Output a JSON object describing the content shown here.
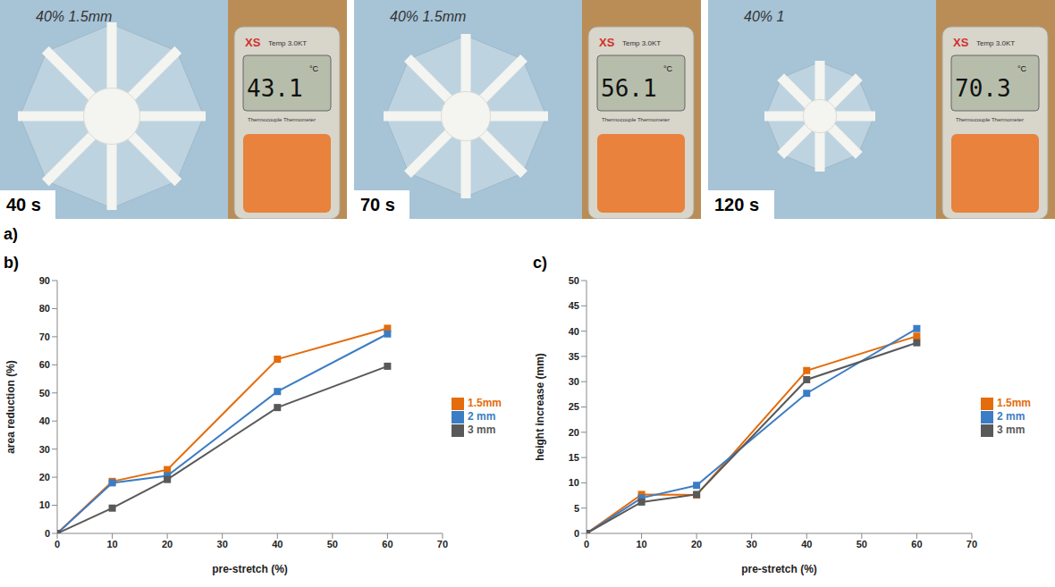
{
  "photos": {
    "label": "a)",
    "device": {
      "brand": "XS",
      "model": "Temp 3.0KT",
      "name": "Thermocouple Thermometer"
    },
    "frames": [
      {
        "time": "40 s",
        "reading": "43.1",
        "unit": "°C",
        "note": "40% 1.5mm"
      },
      {
        "time": "70 s",
        "reading": "56.1",
        "unit": "°C",
        "note": "40% 1.5mm"
      },
      {
        "time": "120 s",
        "reading": "70.3",
        "unit": "°C",
        "note": "40% 1"
      }
    ]
  },
  "chart_data": [
    {
      "label": "b)",
      "type": "line",
      "x_label": "pre-stretch (%)",
      "y_label": "area reduction (%)",
      "x": [
        0,
        10,
        20,
        40,
        60
      ],
      "xlim": [
        0,
        70
      ],
      "xticks": [
        0,
        10,
        20,
        30,
        40,
        50,
        60,
        70
      ],
      "ylim": [
        0,
        90
      ],
      "yticks": [
        0,
        10,
        20,
        30,
        40,
        50,
        60,
        70,
        80,
        90
      ],
      "grid": false,
      "legend": "right",
      "marker": "square",
      "series": [
        {
          "name": "1.5mm",
          "color": "#e46c0a",
          "values": [
            0,
            18.5,
            22.7,
            62,
            73
          ]
        },
        {
          "name": "2 mm",
          "color": "#3b7dc4",
          "values": [
            0,
            18,
            20.5,
            50.5,
            71
          ]
        },
        {
          "name": "3 mm",
          "color": "#595959",
          "values": [
            0,
            9,
            19.2,
            44.8,
            59.5
          ]
        }
      ]
    },
    {
      "label": "c)",
      "type": "line",
      "x_label": "pre-stretch (%)",
      "y_label": "height increase (mm)",
      "x": [
        0,
        10,
        20,
        40,
        60
      ],
      "xlim": [
        0,
        70
      ],
      "xticks": [
        0,
        10,
        20,
        30,
        40,
        50,
        60,
        70
      ],
      "ylim": [
        0,
        50
      ],
      "yticks": [
        0,
        5,
        10,
        15,
        20,
        25,
        30,
        35,
        40,
        45,
        50
      ],
      "grid": false,
      "legend": "right",
      "marker": "square",
      "series": [
        {
          "name": "1.5mm",
          "color": "#e46c0a",
          "values": [
            0,
            7.7,
            7.6,
            32.2,
            39
          ]
        },
        {
          "name": "2 mm",
          "color": "#3b7dc4",
          "values": [
            0,
            7,
            9.5,
            27.7,
            40.5
          ]
        },
        {
          "name": "3 mm",
          "color": "#595959",
          "values": [
            0,
            6.2,
            7.7,
            30.4,
            37.7
          ]
        }
      ]
    }
  ]
}
